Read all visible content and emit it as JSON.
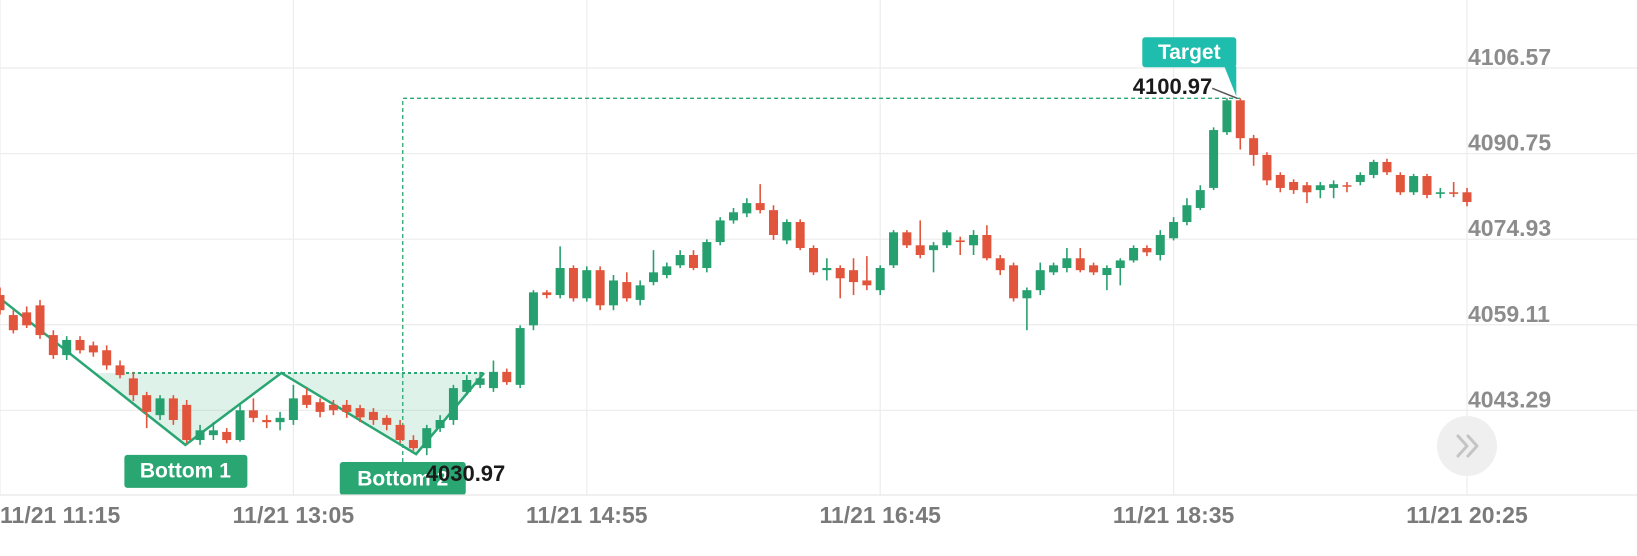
{
  "chart_data": {
    "type": "candlestick",
    "x": [
      0,
      1,
      2,
      3,
      4,
      5,
      6,
      7,
      8,
      9,
      10,
      11,
      12,
      13,
      14,
      15,
      16,
      17,
      18,
      19,
      20,
      21,
      22,
      23,
      24,
      25,
      26,
      27,
      28,
      29,
      30,
      31,
      32,
      33,
      34,
      35,
      36,
      37,
      38,
      39,
      40,
      41,
      42,
      43,
      44,
      45,
      46,
      47,
      48,
      49,
      50,
      51,
      52,
      53,
      54,
      55,
      56,
      57,
      58,
      59,
      60,
      61,
      62,
      63,
      64,
      65,
      66,
      67,
      68,
      69,
      70,
      71,
      72,
      73,
      74,
      75,
      76,
      77,
      78,
      79,
      80,
      81,
      82,
      83,
      84,
      85,
      86,
      87,
      88,
      89,
      90,
      91,
      92,
      93,
      94,
      95,
      96,
      97,
      98,
      99,
      100,
      101,
      102,
      103,
      104,
      105,
      106,
      107,
      108,
      109,
      110
    ],
    "open": [
      4064.6,
      4060.9,
      4061.4,
      4062.7,
      4057.2,
      4053.5,
      4056.3,
      4055.3,
      4054.4,
      4051.6,
      4049.2,
      4046.1,
      4042.4,
      4045.5,
      4044.3,
      4037.8,
      4038.7,
      4039.3,
      4037.8,
      4043.3,
      4041.5,
      4041.1,
      4041.5,
      4046.1,
      4044.8,
      4044.3,
      4044.3,
      4043.7,
      4043.0,
      4041.9,
      4040.6,
      4037.8,
      4036.3,
      4040.0,
      4041.5,
      4046.7,
      4048.0,
      4047.4,
      4050.4,
      4048.0,
      4059.0,
      4065.1,
      4064.6,
      4069.6,
      4064.0,
      4069.2,
      4062.7,
      4067.0,
      4063.7,
      4067.0,
      4068.3,
      4070.1,
      4072.0,
      4069.6,
      4074.4,
      4078.4,
      4079.7,
      4081.6,
      4080.3,
      4074.7,
      4078.1,
      4073.3,
      4069.2,
      4069.6,
      4069.2,
      4067.3,
      4065.5,
      4070.1,
      4076.2,
      4073.8,
      4072.9,
      4073.8,
      4074.7,
      4073.8,
      4075.7,
      4071.4,
      4070.1,
      4064.0,
      4065.5,
      4068.8,
      4069.6,
      4071.4,
      4070.1,
      4068.3,
      4069.6,
      4071.0,
      4073.3,
      4072.0,
      4075.1,
      4078.1,
      4080.7,
      4084.4,
      4094.7,
      4100.6,
      4093.6,
      4090.5,
      4086.8,
      4085.5,
      4084.9,
      4084.0,
      4084.4,
      4084.9,
      4085.5,
      4086.8,
      4089.2,
      4086.8,
      4083.6,
      4086.6,
      4083.3,
      4083.6,
      4083.6
    ],
    "high": [
      4066.0,
      4061.8,
      4062.5,
      4063.7,
      4058.1,
      4057.0,
      4057.0,
      4056.0,
      4055.3,
      4052.5,
      4050.4,
      4046.7,
      4046.1,
      4046.1,
      4045.2,
      4040.6,
      4041.1,
      4040.0,
      4044.3,
      4045.5,
      4042.4,
      4043.0,
      4048.0,
      4047.4,
      4045.5,
      4045.2,
      4045.2,
      4044.3,
      4043.7,
      4042.4,
      4041.5,
      4038.7,
      4040.6,
      4042.4,
      4048.0,
      4049.8,
      4050.4,
      4052.5,
      4051.0,
      4059.0,
      4065.5,
      4065.5,
      4073.6,
      4070.1,
      4069.9,
      4069.9,
      4068.3,
      4068.8,
      4067.3,
      4072.9,
      4070.6,
      4072.9,
      4072.9,
      4074.9,
      4079.0,
      4080.7,
      4082.5,
      4085.1,
      4081.2,
      4078.6,
      4078.6,
      4073.8,
      4071.4,
      4070.1,
      4071.4,
      4071.8,
      4070.1,
      4076.6,
      4076.6,
      4078.4,
      4074.4,
      4076.6,
      4075.4,
      4076.6,
      4077.5,
      4072.0,
      4070.6,
      4066.0,
      4070.6,
      4070.6,
      4073.3,
      4073.3,
      4070.6,
      4070.1,
      4071.4,
      4073.8,
      4073.8,
      4076.6,
      4079.0,
      4082.5,
      4084.9,
      4095.6,
      4100.97,
      4100.97,
      4094.2,
      4091.0,
      4087.3,
      4086.0,
      4085.5,
      4085.5,
      4085.8,
      4085.5,
      4087.3,
      4089.6,
      4089.8,
      4087.3,
      4087.0,
      4087.0,
      4084.4,
      4085.5,
      4084.4
    ],
    "low": [
      4061.0,
      4057.5,
      4058.5,
      4056.5,
      4052.8,
      4052.6,
      4053.8,
      4053.2,
      4050.8,
      4049.2,
      4045.0,
      4040.0,
      4041.5,
      4040.6,
      4037.2,
      4036.9,
      4037.8,
      4037.2,
      4037.5,
      4041.1,
      4040.0,
      4039.6,
      4040.6,
      4043.7,
      4042.0,
      4042.4,
      4041.9,
      4041.1,
      4040.6,
      4039.6,
      4037.2,
      4035.8,
      4035.0,
      4039.3,
      4040.6,
      4046.1,
      4047.4,
      4046.7,
      4048.0,
      4047.4,
      4058.1,
      4064.0,
      4064.0,
      4063.4,
      4063.4,
      4061.8,
      4061.8,
      4063.4,
      4062.7,
      4066.4,
      4067.7,
      4069.6,
      4069.2,
      4068.8,
      4073.8,
      4077.8,
      4079.0,
      4079.7,
      4074.8,
      4074.0,
      4072.9,
      4068.3,
      4067.3,
      4064.0,
      4064.6,
      4065.5,
      4064.6,
      4069.6,
      4073.3,
      4071.4,
      4068.8,
      4073.3,
      4072.0,
      4072.0,
      4071.0,
      4068.3,
      4063.4,
      4058.1,
      4064.6,
      4068.3,
      4068.8,
      4068.8,
      4068.3,
      4065.5,
      4066.4,
      4070.6,
      4071.8,
      4071.0,
      4074.7,
      4077.5,
      4080.3,
      4084.0,
      4094.2,
      4091.5,
      4088.5,
      4084.9,
      4083.6,
      4083.3,
      4081.6,
      4082.5,
      4082.5,
      4083.6,
      4084.9,
      4086.2,
      4086.8,
      4083.1,
      4083.1,
      4082.5,
      4082.5,
      4082.7,
      4081.0
    ],
    "close": [
      4061.8,
      4058.1,
      4059.0,
      4057.2,
      4053.5,
      4056.3,
      4054.4,
      4054.0,
      4051.6,
      4049.8,
      4046.1,
      4043.0,
      4045.5,
      4041.5,
      4037.8,
      4039.6,
      4039.6,
      4037.8,
      4043.3,
      4041.9,
      4041.1,
      4041.9,
      4045.5,
      4044.3,
      4043.0,
      4043.3,
      4043.0,
      4042.0,
      4041.5,
      4040.6,
      4037.8,
      4036.3,
      4040.0,
      4041.5,
      4047.4,
      4048.9,
      4049.2,
      4050.4,
      4048.5,
      4058.5,
      4065.1,
      4064.6,
      4069.6,
      4064.0,
      4069.2,
      4062.7,
      4067.3,
      4064.0,
      4066.4,
      4068.8,
      4069.9,
      4072.0,
      4069.6,
      4074.4,
      4078.4,
      4079.9,
      4081.6,
      4080.3,
      4075.7,
      4078.1,
      4073.3,
      4068.8,
      4069.6,
      4067.7,
      4067.0,
      4066.4,
      4069.6,
      4076.2,
      4073.8,
      4072.0,
      4073.8,
      4076.2,
      4074.4,
      4075.7,
      4071.4,
      4069.2,
      4064.0,
      4065.5,
      4069.2,
      4070.1,
      4071.4,
      4069.2,
      4068.8,
      4069.6,
      4071.0,
      4073.3,
      4072.5,
      4075.7,
      4078.1,
      4081.2,
      4084.0,
      4095.1,
      4100.6,
      4093.6,
      4090.5,
      4085.8,
      4084.4,
      4084.0,
      4083.6,
      4084.9,
      4085.1,
      4084.7,
      4086.8,
      4089.2,
      4087.3,
      4083.6,
      4086.6,
      4083.1,
      4083.6,
      4083.3,
      4081.8
    ],
    "up_color": "#27a06f",
    "down_color": "#e2553d",
    "xlim": [
      0,
      110
    ],
    "xticks": [
      {
        "value": 0,
        "label": "11/21 11:15"
      },
      {
        "value": 22,
        "label": "11/21 13:05"
      },
      {
        "value": 44,
        "label": "11/21 14:55"
      },
      {
        "value": 66,
        "label": "11/21 16:45"
      },
      {
        "value": 88,
        "label": "11/21 18:35"
      },
      {
        "value": 110,
        "label": "11/21 20:25"
      }
    ],
    "ylim": [
      4027.64,
      4119.14
    ],
    "yticks": [
      4043.29,
      4059.11,
      4074.93,
      4090.75,
      4106.57
    ],
    "grid": true,
    "pattern": {
      "x": [
        0,
        13.9,
        21.1,
        31.2,
        36.3
      ],
      "values": [
        4064.0,
        4036.9,
        4050.2,
        4035.2,
        4050.2
      ],
      "neckline": 4050.2,
      "color": "#2aa673"
    },
    "bottom_1": {
      "label": "Bottom 1",
      "x": 13.9
    },
    "bottom_2": {
      "label": "Bottom 2",
      "x": 30.2
    },
    "projection": {
      "x": 30.2,
      "value": 4030.97
    },
    "target": {
      "label": "Target",
      "x": 93,
      "value": 4100.97,
      "color": "#1ebdad"
    }
  }
}
